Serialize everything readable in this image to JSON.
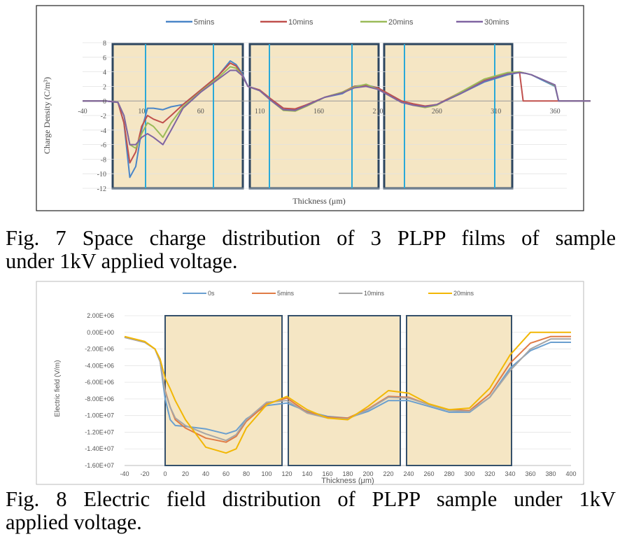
{
  "figure7": {
    "caption_line1": "Fig. 7 Space charge distribution of 3 PLPP films of sample",
    "caption_line2": "under 1kV applied voltage.",
    "chart_data": {
      "type": "line",
      "xlabel": "Thickness (μm)",
      "ylabel": "Charge Density (C/m³)",
      "xlim": [
        -40,
        370
      ],
      "ylim": [
        -12,
        8
      ],
      "x_ticks": [
        -40,
        10,
        60,
        110,
        160,
        210,
        260,
        310,
        360
      ],
      "y_ticks": [
        8,
        6,
        4,
        2,
        0,
        -2,
        -4,
        -6,
        -8,
        -10,
        -12
      ],
      "legend_position": "top",
      "series": [
        {
          "name": "5mins",
          "color": "#4a86c8",
          "x": [
            -40,
            -20,
            -10,
            -5,
            0,
            5,
            10,
            15,
            20,
            28,
            35,
            45,
            60,
            75,
            85,
            90,
            95,
            100,
            110,
            120,
            130,
            140,
            150,
            165,
            180,
            190,
            200,
            210,
            230,
            240,
            250,
            260,
            280,
            300,
            320,
            330,
            335,
            340,
            350,
            360,
            363,
            370,
            390
          ],
          "y": [
            0,
            0,
            -0.2,
            -3,
            -10.5,
            -9,
            -4,
            -1,
            -1,
            -1.2,
            -0.8,
            -0.5,
            1.5,
            3.5,
            5.5,
            5,
            3.8,
            2,
            1.5,
            0.2,
            -1,
            -1.2,
            -0.5,
            0.5,
            1,
            2,
            2.2,
            1.8,
            0,
            -0.5,
            -0.8,
            -0.5,
            1,
            2.6,
            3.6,
            3.9,
            3.8,
            3.6,
            2.8,
            2,
            0,
            0,
            0
          ]
        },
        {
          "name": "10mins",
          "color": "#c0504d",
          "x": [
            -40,
            -20,
            -10,
            -5,
            0,
            5,
            10,
            15,
            20,
            28,
            35,
            45,
            60,
            75,
            85,
            90,
            95,
            100,
            110,
            120,
            130,
            140,
            150,
            165,
            180,
            190,
            200,
            210,
            230,
            240,
            250,
            260,
            280,
            300,
            320,
            330,
            333,
            340,
            350,
            360,
            363,
            370,
            390
          ],
          "y": [
            0,
            0,
            -0.2,
            -3,
            -8.5,
            -7,
            -3.5,
            -2,
            -2.5,
            -3,
            -2,
            -0.5,
            1.5,
            3.5,
            5.2,
            4.8,
            3.6,
            2,
            1.5,
            0.2,
            -1,
            -1.1,
            -0.5,
            0.5,
            1.2,
            2,
            2.1,
            1.8,
            0,
            -0.4,
            -0.7,
            -0.5,
            1.2,
            2.8,
            3.8,
            3.9,
            0,
            0,
            0,
            0,
            0,
            0,
            0
          ]
        },
        {
          "name": "20mins",
          "color": "#9bbb59",
          "x": [
            -40,
            -20,
            -10,
            -5,
            0,
            5,
            10,
            15,
            20,
            28,
            35,
            45,
            60,
            75,
            85,
            90,
            95,
            100,
            110,
            120,
            130,
            140,
            150,
            165,
            180,
            190,
            200,
            210,
            230,
            240,
            250,
            260,
            280,
            300,
            320,
            330,
            335,
            340,
            350,
            360,
            363,
            370,
            390
          ],
          "y": [
            0,
            0,
            -0.2,
            -2,
            -6,
            -6.5,
            -4.5,
            -3,
            -3.5,
            -5,
            -3,
            -0.8,
            1.3,
            3.2,
            4.7,
            4.5,
            3.5,
            2,
            1.4,
            0,
            -1.3,
            -1.4,
            -0.7,
            0.5,
            1.2,
            1.9,
            2.3,
            1.6,
            -0.2,
            -0.6,
            -0.9,
            -0.6,
            1.2,
            3,
            3.9,
            4,
            3.8,
            3.6,
            2.9,
            2.1,
            0,
            0,
            0
          ]
        },
        {
          "name": "30mins",
          "color": "#8064a2",
          "x": [
            -40,
            -20,
            -10,
            -5,
            0,
            5,
            10,
            15,
            20,
            28,
            35,
            45,
            60,
            75,
            85,
            90,
            95,
            100,
            110,
            120,
            130,
            140,
            150,
            165,
            180,
            190,
            200,
            210,
            230,
            240,
            250,
            260,
            280,
            300,
            320,
            330,
            335,
            340,
            350,
            360,
            363,
            370,
            390
          ],
          "y": [
            0,
            0,
            -0.2,
            -2,
            -6,
            -6,
            -5,
            -4.5,
            -5,
            -6,
            -4,
            -1,
            1.2,
            3,
            4.2,
            4.2,
            3.5,
            2,
            1.4,
            0,
            -1.2,
            -1.3,
            -0.6,
            0.5,
            1.1,
            1.8,
            2,
            1.6,
            -0.2,
            -0.6,
            -0.8,
            -0.5,
            1,
            2.7,
            3.7,
            3.9,
            3.8,
            3.6,
            2.9,
            2.2,
            0,
            0,
            0
          ]
        }
      ]
    }
  },
  "figure8": {
    "caption_line1": "Fig. 8 Electric field distribution of PLPP sample under 1kV",
    "caption_line2": "applied voltage.",
    "chart_data": {
      "type": "line",
      "xlabel": "Thickness (μm)",
      "ylabel": "Electric field (V/m)",
      "xlim": [
        -40,
        400
      ],
      "ylim": [
        -16000000,
        2000000
      ],
      "x_ticks": [
        -40,
        -20,
        0,
        20,
        40,
        60,
        80,
        100,
        120,
        140,
        160,
        180,
        200,
        220,
        240,
        260,
        280,
        300,
        320,
        340,
        360,
        380,
        400
      ],
      "y_ticks": [
        "2.00E+06",
        "0.00E+00",
        "-2.00E+06",
        "-4.00E+06",
        "-6.00E+06",
        "-8.00E+06",
        "-1.00E+07",
        "-1.20E+07",
        "-1.40E+07",
        "-1.60E+07"
      ],
      "legend_position": "top",
      "series": [
        {
          "name": "0s",
          "color": "#6a9fcf",
          "x": [
            -40,
            -20,
            -10,
            -5,
            0,
            5,
            10,
            20,
            40,
            60,
            70,
            80,
            100,
            120,
            140,
            160,
            180,
            200,
            220,
            240,
            260,
            280,
            300,
            320,
            340,
            360,
            380,
            400
          ],
          "y": [
            -600000,
            -1200000,
            -2000000,
            -3500000,
            -8000000,
            -10500000,
            -11200000,
            -11300000,
            -11600000,
            -12200000,
            -11800000,
            -10400000,
            -8800000,
            -8500000,
            -9500000,
            -10100000,
            -10300000,
            -9500000,
            -8200000,
            -8200000,
            -8900000,
            -9600000,
            -9600000,
            -7800000,
            -4300000,
            -2200000,
            -1200000,
            -1200000
          ]
        },
        {
          "name": "5mins",
          "color": "#e07b46",
          "x": [
            -40,
            -20,
            -10,
            -5,
            0,
            5,
            10,
            20,
            40,
            60,
            70,
            80,
            100,
            120,
            140,
            160,
            180,
            200,
            220,
            240,
            260,
            280,
            300,
            320,
            340,
            360,
            380,
            400
          ],
          "y": [
            -600000,
            -1200000,
            -2000000,
            -3500000,
            -7000000,
            -9000000,
            -10500000,
            -11500000,
            -12700000,
            -13200000,
            -12500000,
            -10700000,
            -8600000,
            -7900000,
            -9600000,
            -10200000,
            -10300000,
            -9200000,
            -7700000,
            -7800000,
            -8700000,
            -9300000,
            -9400000,
            -7400000,
            -3700000,
            -1300000,
            -500000,
            -500000
          ]
        },
        {
          "name": "10mins",
          "color": "#a6a6a6",
          "x": [
            -40,
            -20,
            -10,
            -5,
            0,
            5,
            10,
            20,
            40,
            60,
            70,
            80,
            100,
            120,
            140,
            160,
            180,
            200,
            220,
            240,
            260,
            280,
            300,
            320,
            340,
            360,
            380,
            400
          ],
          "y": [
            -600000,
            -1200000,
            -2000000,
            -3500000,
            -7200000,
            -9000000,
            -10300000,
            -11200000,
            -12200000,
            -13000000,
            -12300000,
            -10500000,
            -8400000,
            -8200000,
            -9700000,
            -10300000,
            -10400000,
            -9300000,
            -7800000,
            -7900000,
            -8700000,
            -9400000,
            -9500000,
            -7800000,
            -4600000,
            -2000000,
            -800000,
            -800000
          ]
        },
        {
          "name": "20mins",
          "color": "#f2b705",
          "x": [
            -40,
            -20,
            -10,
            -5,
            0,
            5,
            10,
            20,
            40,
            60,
            70,
            80,
            100,
            120,
            140,
            160,
            180,
            200,
            220,
            240,
            260,
            280,
            300,
            320,
            340,
            360,
            380,
            400
          ],
          "y": [
            -500000,
            -1100000,
            -2000000,
            -3200000,
            -5500000,
            -6800000,
            -8200000,
            -10500000,
            -13800000,
            -14500000,
            -14000000,
            -11500000,
            -8700000,
            -7700000,
            -9300000,
            -10300000,
            -10500000,
            -8900000,
            -7000000,
            -7300000,
            -8600000,
            -9300000,
            -9100000,
            -6700000,
            -2700000,
            0,
            0,
            0
          ]
        }
      ]
    }
  }
}
